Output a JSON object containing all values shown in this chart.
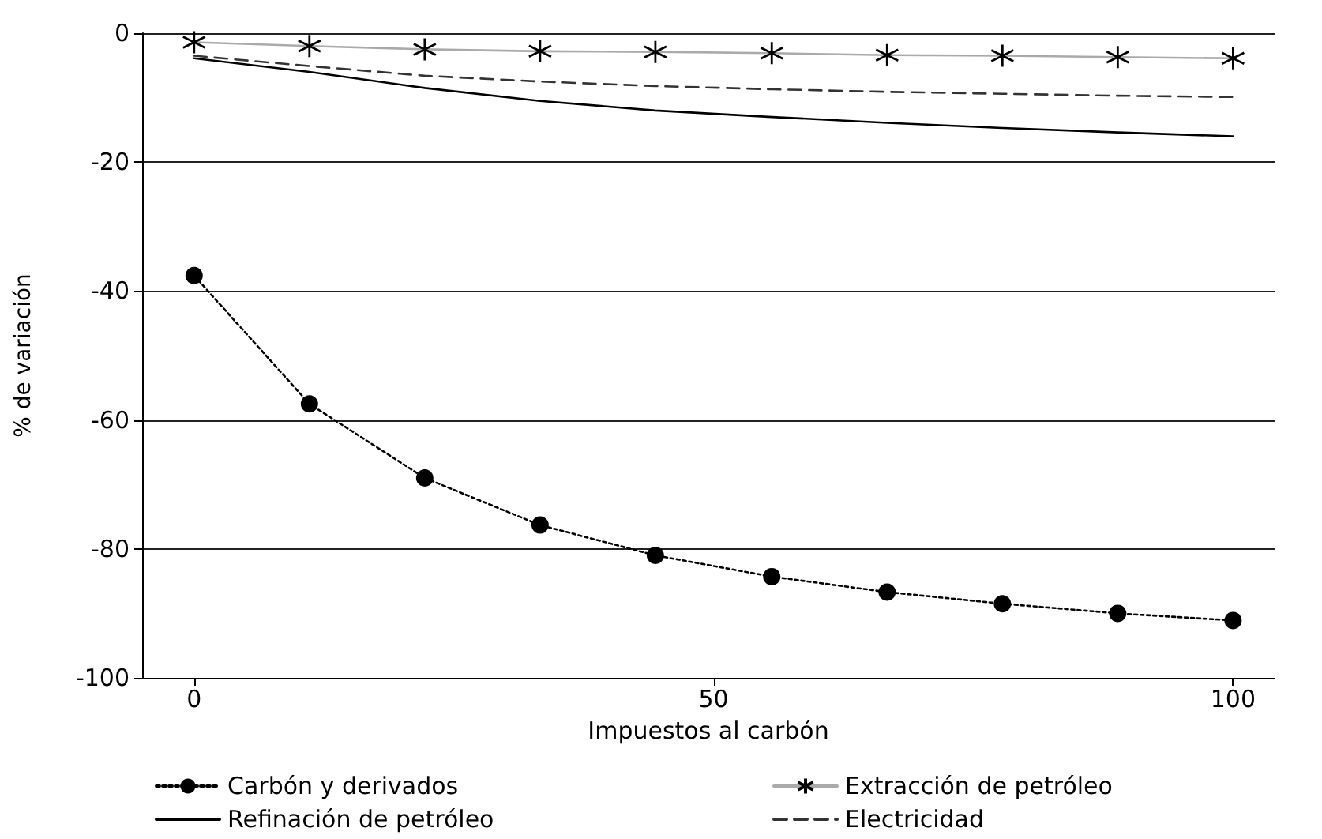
{
  "chart_data": {
    "type": "line",
    "xlabel": "Impuestos al carbón",
    "ylabel": "% de variación",
    "x": [
      0,
      11.1,
      22.2,
      33.3,
      44.4,
      55.6,
      66.7,
      77.8,
      88.9,
      100
    ],
    "xlim": [
      -5,
      104
    ],
    "xticks": [
      0,
      50,
      100
    ],
    "ylim": [
      -100,
      0
    ],
    "yticks": [
      -100,
      -80,
      -60,
      -40,
      -20,
      0
    ],
    "grid": "y",
    "legend": "bottom",
    "series": [
      {
        "name": "Carbón y derivados",
        "color": "#000000",
        "marker": "circle",
        "line_style": "dotted",
        "values": [
          -37.6,
          -57.5,
          -69.0,
          -76.3,
          -81.0,
          -84.3,
          -86.7,
          -88.5,
          -90.0,
          -91.1
        ]
      },
      {
        "name": "Extracción de petróleo",
        "color": "#aaaaaa",
        "marker": "cross",
        "line_style": "solid",
        "values": [
          -1.4,
          -2.0,
          -2.5,
          -2.8,
          -2.9,
          -3.1,
          -3.4,
          -3.5,
          -3.7,
          -3.9
        ]
      },
      {
        "name": "Refinación de petróleo",
        "color": "#000000",
        "marker": "none",
        "line_style": "solid",
        "values": [
          -3.9,
          -6.0,
          -8.5,
          -10.5,
          -12.0,
          -13.0,
          -13.9,
          -14.7,
          -15.4,
          -16.0
        ]
      },
      {
        "name": "Electricidad",
        "color": "#333333",
        "marker": "none",
        "line_style": "dashed",
        "values": [
          -3.5,
          -5.1,
          -6.6,
          -7.5,
          -8.2,
          -8.7,
          -9.1,
          -9.4,
          -9.7,
          -9.9
        ]
      }
    ]
  }
}
